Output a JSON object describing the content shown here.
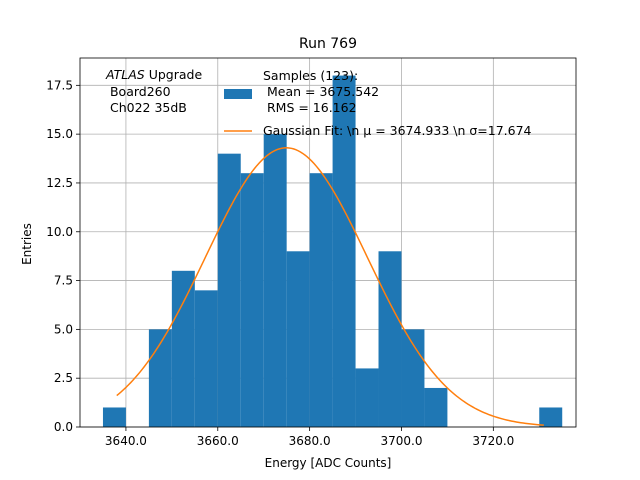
{
  "chart_data": {
    "type": "bar",
    "title": "Run 769",
    "xlabel": "Energy [ADC Counts]",
    "ylabel": "Entries",
    "xlim": [
      3630.0,
      3738.0
    ],
    "ylim": [
      0,
      18.9
    ],
    "grid": true,
    "xticks": [
      3640.0,
      3660.0,
      3680.0,
      3700.0,
      3720.0
    ],
    "xtick_labels": [
      "3640.0",
      "3660.0",
      "3680.0",
      "3700.0",
      "3720.0"
    ],
    "yticks": [
      0.0,
      2.5,
      5.0,
      7.5,
      10.0,
      12.5,
      15.0,
      17.5
    ],
    "ytick_labels": [
      "0.0",
      "2.5",
      "5.0",
      "7.5",
      "10.0",
      "12.5",
      "15.0",
      "17.5"
    ],
    "bin_edges": [
      3635,
      3640,
      3645,
      3650,
      3655,
      3660,
      3665,
      3670,
      3675,
      3680,
      3685,
      3690,
      3695,
      3700,
      3705,
      3710,
      3715,
      3720,
      3725,
      3730,
      3735
    ],
    "counts": [
      1,
      0,
      5,
      8,
      7,
      14,
      13,
      15,
      9,
      13,
      18,
      3,
      9,
      5,
      2,
      0,
      0,
      0,
      0,
      1
    ],
    "fit": {
      "mu": 3674.933,
      "sigma": 17.674,
      "amplitude": 14.3,
      "x_range": [
        3638,
        3731
      ]
    },
    "annotation": {
      "line1_italic": "ATLAS",
      "line1_rest": " Upgrade",
      "line2": " Board260",
      "line3": " Ch022 35dB"
    },
    "legend": {
      "placement": "upper-center",
      "hist_lines": [
        "Samples (123):",
        " Mean = 3675.542",
        " RMS = 16.162"
      ],
      "fit_label": "Gaussian Fit: \\n μ = 3674.933 \\n σ=17.674"
    },
    "colors": {
      "bars": "#1f77b4",
      "fit": "#ff7f0e",
      "grid": "#b0b0b0"
    }
  }
}
